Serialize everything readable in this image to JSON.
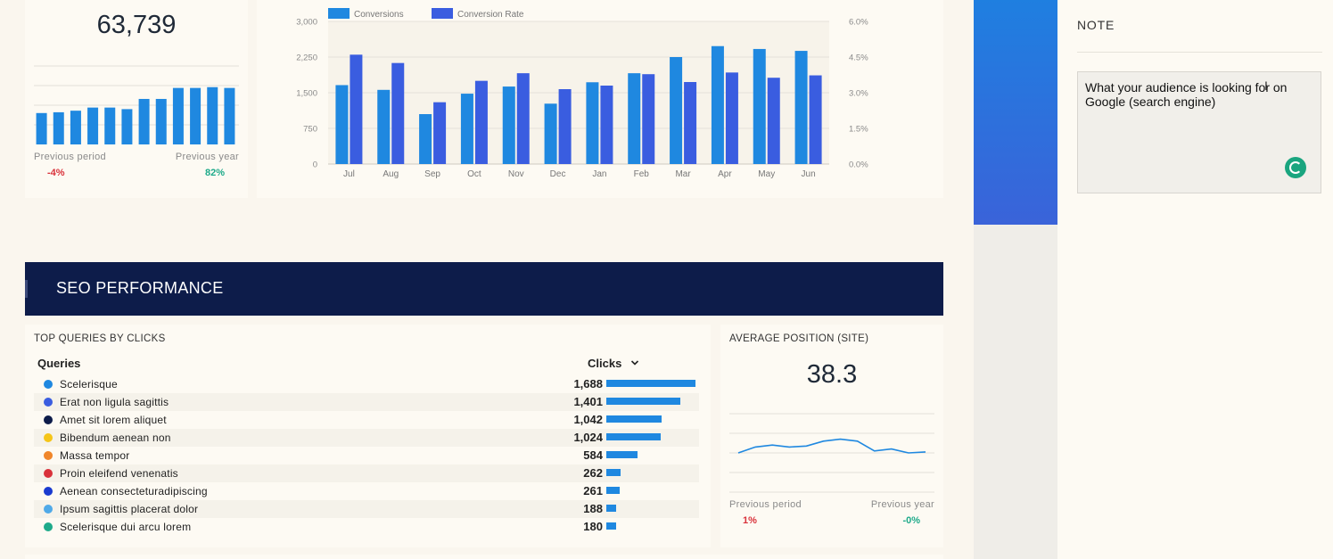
{
  "kpi": {
    "value": "63,739",
    "previous_period_label": "Previous period",
    "previous_period_value": "-4%",
    "previous_year_label": "Previous year",
    "previous_year_value": "82%",
    "sparkline_values": [
      40,
      41,
      43,
      47,
      47,
      45,
      58,
      58,
      72,
      72,
      73,
      72
    ],
    "bar_color": "#1f88e0"
  },
  "chart_data": {
    "type": "bar",
    "categories": [
      "Jul",
      "Aug",
      "Sep",
      "Oct",
      "Nov",
      "Dec",
      "Jan",
      "Feb",
      "Mar",
      "Apr",
      "May",
      "Jun"
    ],
    "series": [
      {
        "name": "Conversions",
        "axis": "left",
        "color": "#1f88e0",
        "values": [
          1660,
          1560,
          1050,
          1480,
          1630,
          1270,
          1720,
          1910,
          2250,
          2480,
          2420,
          2380
        ]
      },
      {
        "name": "Conversion Rate",
        "axis": "right",
        "color": "#3a5de0",
        "values": [
          4.6,
          4.25,
          2.6,
          3.5,
          3.82,
          3.15,
          3.3,
          3.78,
          3.45,
          3.85,
          3.63,
          3.73
        ]
      }
    ],
    "y_left": {
      "ylim": [
        0,
        3000
      ],
      "ticks": [
        "0",
        "750",
        "1,500",
        "2,250",
        "3,000"
      ]
    },
    "y_right": {
      "ylim": [
        0,
        6
      ],
      "ticks": [
        "0.0%",
        "1.5%",
        "3.0%",
        "4.5%",
        "6.0%"
      ]
    },
    "legend": "top-left",
    "grid": true
  },
  "note": {
    "title": "NOTE",
    "text": "What your audience is looking for on Google (search engine)",
    "cursor_icon": "text-cursor-icon",
    "status_icon": "grammarly-icon"
  },
  "seo": {
    "header": "SEO PERFORMANCE",
    "queries_title": "TOP QUERIES BY CLICKS",
    "col_queries": "Queries",
    "col_clicks": "Clicks",
    "sort_icon": "chevron-down-icon",
    "max_clicks": 1688,
    "rows": [
      {
        "name": "Scelerisque",
        "clicks": "1,688",
        "value": 1688,
        "color": "#1f88e0"
      },
      {
        "name": "Erat non ligula sagittis",
        "clicks": "1,401",
        "value": 1401,
        "color": "#3a5de0"
      },
      {
        "name": "Amet sit lorem aliquet",
        "clicks": "1,042",
        "value": 1042,
        "color": "#0d1c4a"
      },
      {
        "name": "Bibendum aenean non",
        "clicks": "1,024",
        "value": 1024,
        "color": "#f5c518"
      },
      {
        "name": "Massa tempor",
        "clicks": "584",
        "value": 584,
        "color": "#f0862a"
      },
      {
        "name": "Proin eleifend venenatis",
        "clicks": "262",
        "value": 262,
        "color": "#d9313a"
      },
      {
        "name": "Aenean consecteturadipiscing",
        "clicks": "261",
        "value": 261,
        "color": "#1a3bd0"
      },
      {
        "name": "Ipsum sagittis placerat dolor",
        "clicks": "188",
        "value": 188,
        "color": "#4fa9e8"
      },
      {
        "name": "Scelerisque dui arcu lorem",
        "clicks": "180",
        "value": 180,
        "color": "#1eaa8a"
      }
    ]
  },
  "avg_position": {
    "title": "AVERAGE POSITION (SITE)",
    "value": "38.3",
    "previous_period_label": "Previous period",
    "previous_period_value": "1%",
    "previous_year_label": "Previous year",
    "previous_year_value": "-0%",
    "line_values": [
      38.0,
      38.3,
      38.4,
      38.3,
      38.35,
      38.6,
      38.7,
      38.6,
      38.1,
      38.2,
      38.0,
      38.05
    ],
    "line_color": "#1f88e0"
  }
}
